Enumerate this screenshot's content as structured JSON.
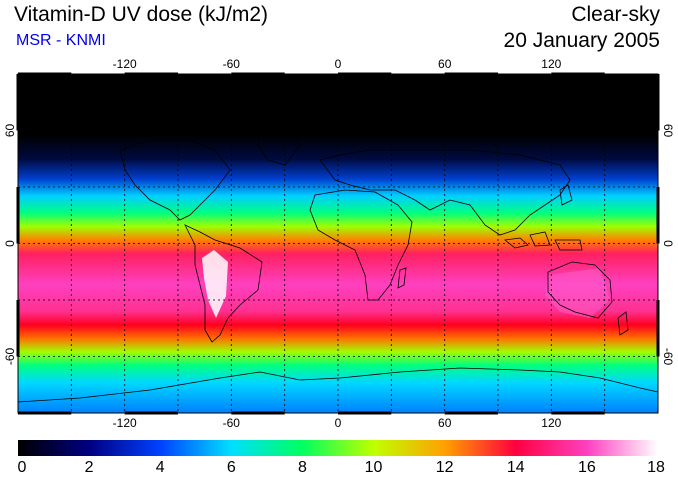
{
  "header": {
    "title": "Vitamin-D UV dose (kJ/m2)",
    "source": "MSR - KNMI",
    "condition": "Clear-sky",
    "date": "20 January 2005"
  },
  "map": {
    "lon_ticks": [
      "-120",
      "-60",
      "0",
      "60",
      "120"
    ],
    "lat_ticks": [
      "60",
      "0",
      "-60"
    ],
    "colors": {
      "grid": "#000000",
      "coastline": "#000000"
    }
  },
  "colorbar": {
    "labels": [
      "0",
      "2",
      "4",
      "6",
      "8",
      "10",
      "12",
      "14",
      "16",
      "18"
    ],
    "stops": [
      "#000000",
      "#000080",
      "#0040ff",
      "#00e0ff",
      "#00ff60",
      "#c0ff00",
      "#ffa000",
      "#ff0040",
      "#ff40c0",
      "#ffffff"
    ]
  }
}
